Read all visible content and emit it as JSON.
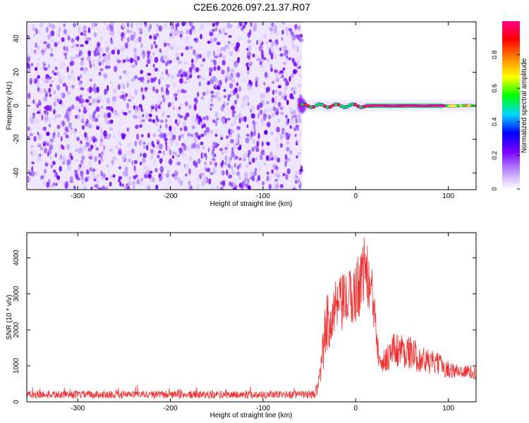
{
  "title": "C2E6.2026.097.21.37.R07",
  "chart_data": [
    {
      "type": "heatmap",
      "title": "C2E6.2026.097.21.37.R07",
      "xlabel": "Height of straight line (km)",
      "ylabel": "Frequency (Hz)",
      "xlim": [
        -355,
        130
      ],
      "ylim": [
        -50,
        50
      ],
      "x_ticks": [
        -300,
        -200,
        -100,
        0,
        100
      ],
      "y_ticks": [
        -40,
        -20,
        0,
        20,
        40
      ],
      "noise_region_x": [
        -355,
        -58
      ],
      "signal_track": {
        "x_start": -62,
        "x_end": 130,
        "frequency": 0,
        "peak_segment": [
          10,
          95
        ],
        "peak_amplitude": 0.95
      },
      "colorbar": {
        "label": "Normalized spectral amplitude",
        "range": [
          0,
          1
        ],
        "ticks": [
          0.0,
          0.2,
          0.4,
          0.6,
          0.8
        ],
        "colors": [
          "#ffffff",
          "#b98cff",
          "#7a00ff",
          "#0000ff",
          "#00d8ff",
          "#00ff00",
          "#ffff00",
          "#ff8800",
          "#ff0000",
          "#ff0088"
        ]
      }
    },
    {
      "type": "line",
      "xlabel": "Height of straight line (km)",
      "ylabel": "SNR (10 * v/v)",
      "xlim": [
        -355,
        130
      ],
      "ylim": [
        0,
        4700
      ],
      "x_ticks": [
        -300,
        -200,
        -100,
        0,
        100
      ],
      "y_ticks": [
        0,
        1000,
        2000,
        3000,
        4000
      ],
      "series": [
        {
          "name": "SNR",
          "color": "#ee3030",
          "x": [
            -355,
            -300,
            -200,
            -100,
            -45,
            -40,
            -35,
            -30,
            -20,
            -10,
            0,
            5,
            10,
            15,
            20,
            25,
            30,
            40,
            50,
            60,
            70,
            80,
            90,
            100,
            110,
            120,
            130
          ],
          "y": [
            200,
            200,
            200,
            200,
            200,
            400,
            1500,
            2300,
            2600,
            2800,
            3000,
            3400,
            3800,
            3200,
            2600,
            1500,
            1100,
            1450,
            1450,
            1350,
            1200,
            1100,
            1050,
            900,
            850,
            850,
            800
          ],
          "noise": [
            120,
            120,
            120,
            120,
            120,
            300,
            700,
            900,
            800,
            800,
            900,
            1000,
            900,
            900,
            800,
            600,
            350,
            500,
            500,
            450,
            400,
            350,
            300,
            250,
            200,
            200,
            200
          ]
        }
      ]
    }
  ]
}
